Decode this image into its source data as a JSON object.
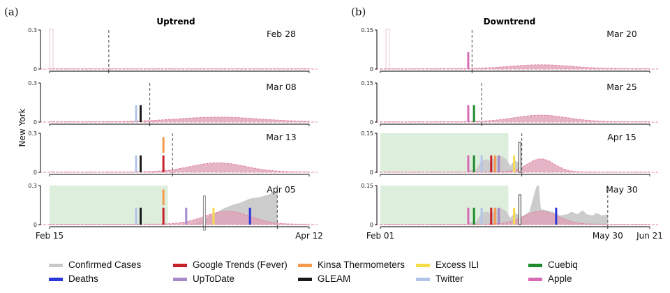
{
  "chart_data": [
    {
      "type": "area",
      "panel_label": "(a)",
      "title": "Uptrend",
      "ylabel": "New York",
      "ylim": [
        0,
        0.3
      ],
      "yticks": [
        "0",
        "0.3"
      ],
      "x_start": "Feb 15",
      "x_end": "Apr 12",
      "x_days": 57,
      "xtick_labels": [
        {
          "day": 0,
          "label": "Feb 15"
        },
        {
          "day": 57,
          "label": "Apr 12"
        }
      ],
      "shade_until_day": 26,
      "rows": [
        {
          "date_label": "Feb 28",
          "cutoff_day": 13,
          "show_shade": false,
          "show_gleam_cases": false,
          "cases": [],
          "forecast": {
            "peak_day": 37,
            "peak": 0.0,
            "width": 8
          },
          "bars": [],
          "sep_day": null
        },
        {
          "date_label": "Mar 08",
          "cutoff_day": 22,
          "show_shade": false,
          "forecast": {
            "peak_day": 37,
            "peak": 0.035,
            "width": 9
          },
          "cases": [],
          "bars": [
            {
              "series": "Twitter",
              "day": 19,
              "value": 0.13
            },
            {
              "series": "GLEAM",
              "day": 20,
              "value": 0.13
            }
          ],
          "sep_day": null
        },
        {
          "date_label": "Mar 13",
          "cutoff_day": 27,
          "show_shade": false,
          "forecast": {
            "peak_day": 37,
            "peak": 0.07,
            "width": 6
          },
          "cases": [],
          "bars": [
            {
              "series": "Twitter",
              "day": 19,
              "value": 0.13
            },
            {
              "series": "GLEAM",
              "day": 20,
              "value": 0.13
            },
            {
              "series": "Google Trends (Fever)",
              "day": 25,
              "value": 0.13
            },
            {
              "series": "Kinsa Thermometers",
              "day": 25,
              "value": 0.27,
              "from": 0.15
            }
          ],
          "sep_day": null
        },
        {
          "date_label": "Apr 05",
          "cutoff_day": 50,
          "show_shade": true,
          "forecast": {
            "peak_day": 39,
            "peak": 0.1,
            "width": 5
          },
          "cases": [
            [
              30,
              0
            ],
            [
              32,
              0.01
            ],
            [
              34,
              0.04
            ],
            [
              36,
              0.08
            ],
            [
              38,
              0.12
            ],
            [
              40,
              0.15
            ],
            [
              42,
              0.17
            ],
            [
              44,
              0.2
            ],
            [
              46,
              0.21
            ],
            [
              48,
              0.23
            ],
            [
              50,
              0.26
            ]
          ],
          "bars": [
            {
              "series": "Twitter",
              "day": 19,
              "value": 0.13
            },
            {
              "series": "GLEAM",
              "day": 20,
              "value": 0.13
            },
            {
              "series": "Google Trends (Fever)",
              "day": 25,
              "value": 0.13
            },
            {
              "series": "Kinsa Thermometers",
              "day": 25,
              "value": 0.27,
              "from": 0.15
            },
            {
              "series": "UpToDate",
              "day": 30,
              "value": 0.13
            },
            {
              "series": "Excess ILI",
              "day": 36,
              "value": 0.13
            },
            {
              "series": "Deaths",
              "day": 44,
              "value": 0.13
            }
          ],
          "sep_day": 34
        }
      ]
    },
    {
      "type": "area",
      "panel_label": "(b)",
      "title": "Downtrend",
      "ylim": [
        0,
        0.15
      ],
      "yticks": [
        "0",
        "0.15"
      ],
      "x_start": "Feb 01",
      "x_end": "Jun 21",
      "x_days": 141,
      "xtick_labels": [
        {
          "day": 0,
          "label": "Feb 01"
        },
        {
          "day": 119,
          "label": "May 30"
        },
        {
          "day": 141,
          "label": "Jun 21"
        }
      ],
      "shade_until_day": 67,
      "rows": [
        {
          "date_label": "Mar 20",
          "cutoff_day": 48,
          "show_shade": false,
          "forecast": {
            "peak_day": 84,
            "peak": 0.015,
            "width": 16
          },
          "cases": [],
          "bars": [
            {
              "series": "Apple",
              "day": 46,
              "value": 0.065
            }
          ],
          "sep_day": null
        },
        {
          "date_label": "Mar 25",
          "cutoff_day": 53,
          "show_shade": false,
          "forecast": {
            "peak_day": 84,
            "peak": 0.025,
            "width": 14
          },
          "cases": [],
          "bars": [
            {
              "series": "Apple",
              "day": 46,
              "value": 0.065
            },
            {
              "series": "Cuebiq",
              "day": 49,
              "value": 0.065
            }
          ],
          "sep_day": null
        },
        {
          "date_label": "Apr 15",
          "cutoff_day": 74,
          "show_shade": true,
          "forecast": {
            "peak_day": 84,
            "peak": 0.05,
            "width": 7
          },
          "cases": [
            [
              45,
              0
            ],
            [
              47,
              0.01
            ],
            [
              50,
              0.01
            ],
            [
              53,
              0.045
            ],
            [
              56,
              0.05
            ],
            [
              58,
              0.04
            ],
            [
              60,
              0.06
            ],
            [
              62,
              0.065
            ],
            [
              64,
              0.06
            ],
            [
              66,
              0.05
            ],
            [
              68,
              0.025
            ],
            [
              70,
              0.045
            ],
            [
              72,
              0.04
            ],
            [
              74,
              0.04
            ]
          ],
          "bars": [
            {
              "series": "Apple",
              "day": 46,
              "value": 0.065
            },
            {
              "series": "Cuebiq",
              "day": 49,
              "value": 0.065
            },
            {
              "series": "Twitter",
              "day": 53,
              "value": 0.065
            },
            {
              "series": "Google Trends (Fever)",
              "day": 58,
              "value": 0.065
            },
            {
              "series": "Kinsa Thermometers",
              "day": 60,
              "value": 0.065
            },
            {
              "series": "UpToDate",
              "day": 62,
              "value": 0.065
            },
            {
              "series": "Excess ILI",
              "day": 70,
              "value": 0.065
            },
            {
              "series": "GLEAM_box",
              "day": 73,
              "value": 0.115
            }
          ],
          "sep_day": null
        },
        {
          "date_label": "May 30",
          "cutoff_day": 119,
          "show_shade": true,
          "forecast": {
            "peak_day": 84,
            "peak": 0.05,
            "width": 9
          },
          "cases": [
            [
              45,
              0
            ],
            [
              47,
              0.01
            ],
            [
              50,
              0.01
            ],
            [
              53,
              0.045
            ],
            [
              56,
              0.05
            ],
            [
              58,
              0.04
            ],
            [
              60,
              0.06
            ],
            [
              62,
              0.065
            ],
            [
              64,
              0.06
            ],
            [
              66,
              0.05
            ],
            [
              68,
              0.025
            ],
            [
              70,
              0.045
            ],
            [
              72,
              0.04
            ],
            [
              74,
              0.03
            ],
            [
              78,
              0.05
            ],
            [
              81,
              0.13
            ],
            [
              82,
              0.15
            ],
            [
              83,
              0.15
            ],
            [
              84,
              0.06
            ],
            [
              87,
              0.055
            ],
            [
              90,
              0.05
            ],
            [
              94,
              0.035
            ],
            [
              98,
              0.04
            ],
            [
              100,
              0.05
            ],
            [
              103,
              0.04
            ],
            [
              106,
              0.055
            ],
            [
              108,
              0.04
            ],
            [
              111,
              0.035
            ],
            [
              113,
              0.045
            ],
            [
              116,
              0.035
            ],
            [
              119,
              0.04
            ]
          ],
          "bars": [
            {
              "series": "Apple",
              "day": 46,
              "value": 0.065
            },
            {
              "series": "Cuebiq",
              "day": 49,
              "value": 0.065
            },
            {
              "series": "Twitter",
              "day": 53,
              "value": 0.065
            },
            {
              "series": "Google Trends (Fever)",
              "day": 58,
              "value": 0.065
            },
            {
              "series": "Kinsa Thermometers",
              "day": 60,
              "value": 0.065
            },
            {
              "series": "UpToDate",
              "day": 62,
              "value": 0.065
            },
            {
              "series": "Excess ILI",
              "day": 70,
              "value": 0.065
            },
            {
              "series": "GLEAM_box",
              "day": 73,
              "value": 0.115
            },
            {
              "series": "Deaths",
              "day": 92,
              "value": 0.065
            }
          ],
          "sep_day": null
        }
      ]
    }
  ],
  "legend": [
    {
      "label": "Confirmed Cases",
      "color": "#c9c9c9"
    },
    {
      "label": "Google Trends (Fever)",
      "color": "#c8202a"
    },
    {
      "label": "Kinsa Thermometers",
      "color": "#f39a4c"
    },
    {
      "label": "Excess ILI",
      "color": "#f7dc4a"
    },
    {
      "label": "Cuebiq",
      "color": "#1f8a2e"
    },
    {
      "label": "Deaths",
      "color": "#2a36d8"
    },
    {
      "label": "UpToDate",
      "color": "#a68ac9"
    },
    {
      "label": "GLEAM",
      "color": "#1a1a1a"
    },
    {
      "label": "Twitter",
      "color": "#b2c4e8"
    },
    {
      "label": "Apple",
      "color": "#d66cb6"
    }
  ],
  "colors": {
    "forecast_fill": "#dea3b9",
    "forecast_line": "#e47a95",
    "shade": "#deeedd",
    "cases": "#c9c9c9"
  }
}
